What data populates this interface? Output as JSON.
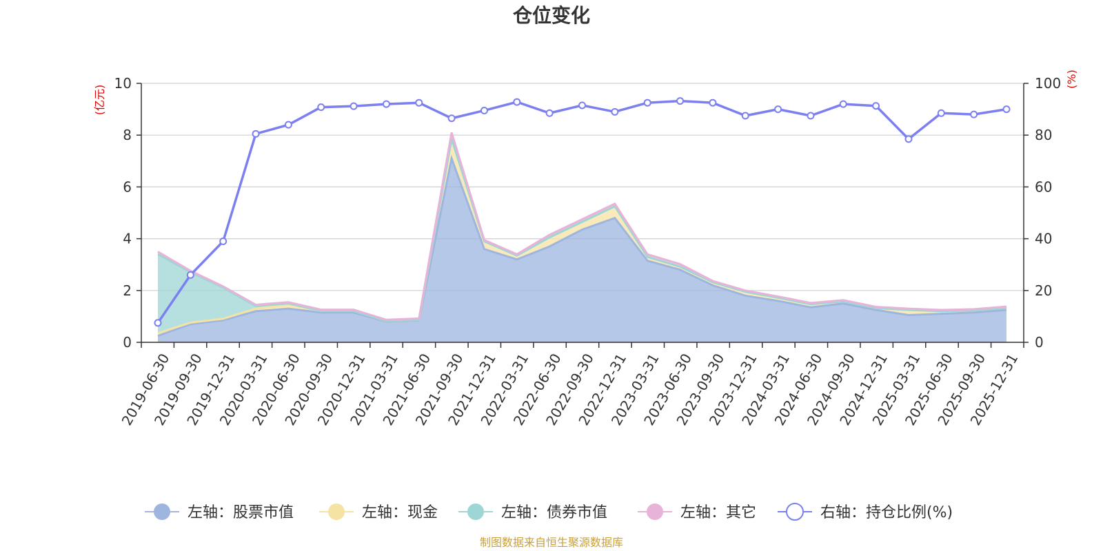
{
  "chart_data": {
    "type": "area",
    "title": "仓位变化",
    "source_note": "制图数据来自恒生聚源数据库",
    "left_axis": {
      "unit": "(亿元)",
      "ylim": [
        0,
        10
      ],
      "ticks": [
        "0",
        "2",
        "4",
        "6",
        "8",
        "10"
      ]
    },
    "right_axis": {
      "unit": "(%)",
      "ylim": [
        0,
        100
      ],
      "ticks": [
        "0",
        "20",
        "40",
        "60",
        "80",
        "100"
      ]
    },
    "grid": true,
    "legend_position": "bottom",
    "categories": [
      "2019-06-30",
      "2019-09-30",
      "2019-12-31",
      "2020-03-31",
      "2020-06-30",
      "2020-09-30",
      "2020-12-31",
      "2021-03-31",
      "2021-06-30",
      "2021-09-30",
      "2021-12-31",
      "2022-03-31",
      "2022-06-30",
      "2022-09-30",
      "2022-12-31",
      "2023-03-31",
      "2023-06-30",
      "2023-09-30",
      "2023-12-31",
      "2024-03-31",
      "2024-06-30",
      "2024-09-30",
      "2024-12-31",
      "2025-03-31",
      "2025-06-30",
      "2025-09-30",
      "2025-12-31"
    ],
    "series": [
      {
        "name": "左轴：股票市值",
        "axis": "left",
        "kind": "stacked-area",
        "color": "#9db5df",
        "values": [
          0.25,
          0.7,
          0.85,
          1.2,
          1.3,
          1.15,
          1.15,
          0.8,
          0.85,
          7.1,
          3.6,
          3.2,
          3.7,
          4.35,
          4.8,
          3.15,
          2.8,
          2.2,
          1.8,
          1.6,
          1.35,
          1.5,
          1.25,
          1.05,
          1.1,
          1.15,
          1.25
        ]
      },
      {
        "name": "左轴：现金",
        "axis": "left",
        "kind": "stacked-area",
        "color": "#f5e3a3",
        "values": [
          0.1,
          0.06,
          0.06,
          0.1,
          0.15,
          0.06,
          0.06,
          0.02,
          0.02,
          0.75,
          0.3,
          0.15,
          0.35,
          0.3,
          0.45,
          0.15,
          0.12,
          0.12,
          0.15,
          0.12,
          0.12,
          0.08,
          0.07,
          0.2,
          0.1,
          0.08,
          0.08
        ]
      },
      {
        "name": "左轴：债券市值",
        "axis": "left",
        "kind": "stacked-area",
        "color": "#9ed6d6",
        "values": [
          3.05,
          1.95,
          1.2,
          0.1,
          0.05,
          0,
          0,
          0,
          0,
          0,
          0,
          0,
          0,
          0,
          0,
          0,
          0,
          0,
          0,
          0,
          0,
          0,
          0,
          0,
          0,
          0,
          0
        ]
      },
      {
        "name": "左轴：其它",
        "axis": "left",
        "kind": "stacked-area",
        "color": "#e8b3d8",
        "values": [
          0.1,
          0.05,
          0.05,
          0.05,
          0.05,
          0.05,
          0.05,
          0.05,
          0.05,
          0.25,
          0.05,
          0.05,
          0.1,
          0.1,
          0.1,
          0.1,
          0.1,
          0.05,
          0.05,
          0.05,
          0.05,
          0.05,
          0.05,
          0.05,
          0.05,
          0.05,
          0.05
        ]
      },
      {
        "name": "右轴：持仓比例(%)",
        "axis": "right",
        "kind": "line",
        "color": "#7b7ff0",
        "values": [
          7.5,
          26,
          39,
          80.5,
          84,
          90.8,
          91.2,
          92,
          92.5,
          86.5,
          89.5,
          92.8,
          88.5,
          91.5,
          89,
          92.5,
          93.2,
          92.5,
          87.5,
          90,
          87.5,
          92,
          91.3,
          78.5,
          88.5,
          88,
          90
        ]
      }
    ]
  }
}
